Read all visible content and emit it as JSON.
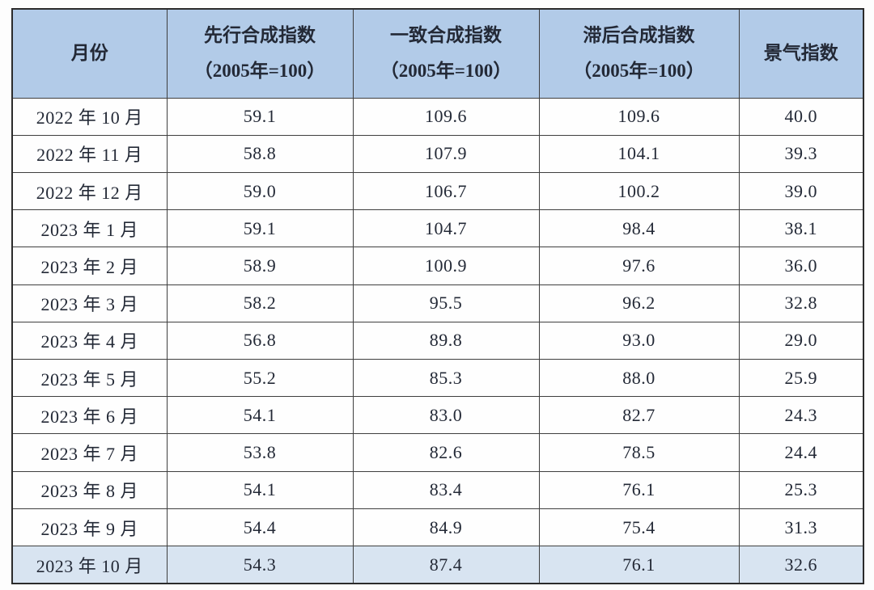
{
  "table": {
    "columns": [
      {
        "label": "月份",
        "sublabel": ""
      },
      {
        "label": "先行合成指数",
        "sublabel": "（2005年=100）"
      },
      {
        "label": "一致合成指数",
        "sublabel": "（2005年=100）"
      },
      {
        "label": "滞后合成指数",
        "sublabel": "（2005年=100）"
      },
      {
        "label": "景气指数",
        "sublabel": ""
      }
    ],
    "rows": [
      {
        "cells": [
          "2022 年 10 月",
          "59.1",
          "109.6",
          "109.6",
          "40.0"
        ],
        "highlight": false
      },
      {
        "cells": [
          "2022 年 11 月",
          "58.8",
          "107.9",
          "104.1",
          "39.3"
        ],
        "highlight": false
      },
      {
        "cells": [
          "2022 年 12 月",
          "59.0",
          "106.7",
          "100.2",
          "39.0"
        ],
        "highlight": false
      },
      {
        "cells": [
          "2023 年 1 月",
          "59.1",
          "104.7",
          "98.4",
          "38.1"
        ],
        "highlight": false
      },
      {
        "cells": [
          "2023 年 2 月",
          "58.9",
          "100.9",
          "97.6",
          "36.0"
        ],
        "highlight": false
      },
      {
        "cells": [
          "2023 年 3 月",
          "58.2",
          "95.5",
          "96.2",
          "32.8"
        ],
        "highlight": false
      },
      {
        "cells": [
          "2023 年 4 月",
          "56.8",
          "89.8",
          "93.0",
          "29.0"
        ],
        "highlight": false
      },
      {
        "cells": [
          "2023 年 5 月",
          "55.2",
          "85.3",
          "88.0",
          "25.9"
        ],
        "highlight": false
      },
      {
        "cells": [
          "2023 年 6 月",
          "54.1",
          "83.0",
          "82.7",
          "24.3"
        ],
        "highlight": false
      },
      {
        "cells": [
          "2023 年 7 月",
          "53.8",
          "82.6",
          "78.5",
          "24.4"
        ],
        "highlight": false
      },
      {
        "cells": [
          "2023 年 8 月",
          "54.1",
          "83.4",
          "76.1",
          "25.3"
        ],
        "highlight": false
      },
      {
        "cells": [
          "2023 年 9 月",
          "54.4",
          "84.9",
          "75.4",
          "31.3"
        ],
        "highlight": false
      },
      {
        "cells": [
          "2023 年 10 月",
          "54.3",
          "87.4",
          "76.1",
          "32.6"
        ],
        "highlight": true
      }
    ]
  },
  "colors": {
    "header_bg": "#b2cbe8",
    "highlight_bg": "#d8e4f1",
    "border_color": "#3f3f3f",
    "outer_border_color": "#2b2b2b",
    "text_color": "#232936",
    "page_bg": "#fdfdfd"
  },
  "chart_data": {
    "type": "table",
    "title": "",
    "columns": [
      "月份",
      "先行合成指数（2005年=100）",
      "一致合成指数（2005年=100）",
      "滞后合成指数（2005年=100）",
      "景气指数"
    ],
    "categories": [
      "2022年10月",
      "2022年11月",
      "2022年12月",
      "2023年1月",
      "2023年2月",
      "2023年3月",
      "2023年4月",
      "2023年5月",
      "2023年6月",
      "2023年7月",
      "2023年8月",
      "2023年9月",
      "2023年10月"
    ],
    "series": [
      {
        "name": "先行合成指数（2005年=100）",
        "values": [
          59.1,
          58.8,
          59.0,
          59.1,
          58.9,
          58.2,
          56.8,
          55.2,
          54.1,
          53.8,
          54.1,
          54.4,
          54.3
        ]
      },
      {
        "name": "一致合成指数（2005年=100）",
        "values": [
          109.6,
          107.9,
          106.7,
          104.7,
          100.9,
          95.5,
          89.8,
          85.3,
          83.0,
          82.6,
          83.4,
          84.9,
          87.4
        ]
      },
      {
        "name": "滞后合成指数（2005年=100）",
        "values": [
          109.6,
          104.1,
          100.2,
          98.4,
          97.6,
          96.2,
          93.0,
          88.0,
          82.7,
          78.5,
          76.1,
          75.4,
          76.1
        ]
      },
      {
        "name": "景气指数",
        "values": [
          40.0,
          39.3,
          39.0,
          38.1,
          36.0,
          32.8,
          29.0,
          25.9,
          24.3,
          24.4,
          25.3,
          31.3,
          32.6
        ]
      }
    ]
  }
}
